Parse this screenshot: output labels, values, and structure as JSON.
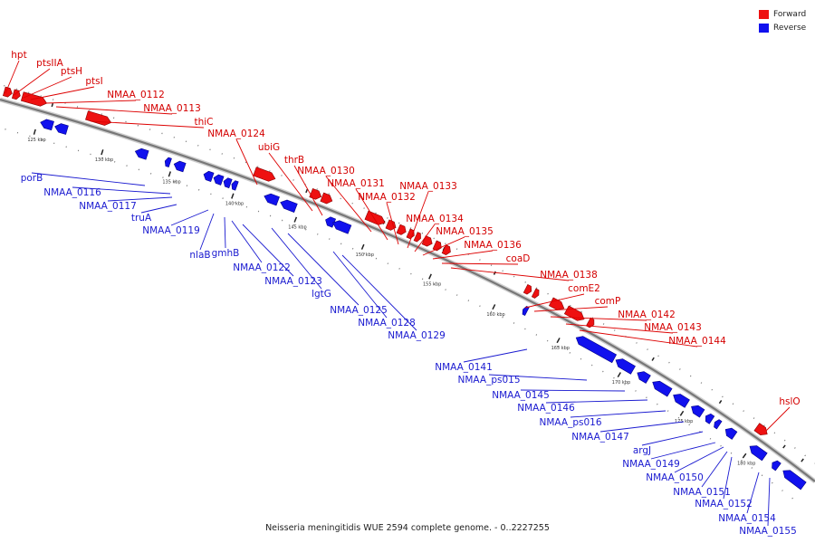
{
  "legend": {
    "forward_label": "Forward",
    "reverse_label": "Reverse",
    "forward_color": "#ee1111",
    "reverse_color": "#1111ee"
  },
  "caption": "Neisseria meningitidis WUE 2594 complete genome. - 0..2227255",
  "scale_ticks": [
    "125 kbp",
    "130 kbp",
    "135 kbp",
    "140 kbp",
    "145 kbp",
    "150 kbp",
    "155 kbp",
    "160 kbp",
    "165 kbp",
    "170 kbp",
    "175 kbp",
    "180 kbp"
  ],
  "forward_genes": [
    "hpt",
    "ptsIIA",
    "ptsH",
    "ptsI",
    "NMAA_0112",
    "NMAA_0113",
    "thiC",
    "NMAA_0124",
    "ubiG",
    "thrB",
    "NMAA_0130",
    "NMAA_0131",
    "NMAA_0132",
    "NMAA_0133",
    "NMAA_0134",
    "NMAA_0135",
    "NMAA_0136",
    "coaD",
    "NMAA_0138",
    "comE2",
    "comP",
    "NMAA_0142",
    "NMAA_0143",
    "NMAA_0144",
    "hslO"
  ],
  "reverse_genes": [
    "porB",
    "NMAA_0116",
    "NMAA_0117",
    "truA",
    "NMAA_0119",
    "nlaB",
    "gmhB",
    "NMAA_0122",
    "NMAA_0123",
    "lgtG",
    "NMAA_0125",
    "NMAA_0128",
    "NMAA_0129",
    "NMAA_0141",
    "NMAA_ps015",
    "NMAA_0145",
    "NMAA_0146",
    "NMAA_ps016",
    "NMAA_0147",
    "argJ",
    "NMAA_0149",
    "NMAA_0150",
    "NMAA_0151",
    "NMAA_0152",
    "NMAA_0154",
    "NMAA_0155"
  ]
}
